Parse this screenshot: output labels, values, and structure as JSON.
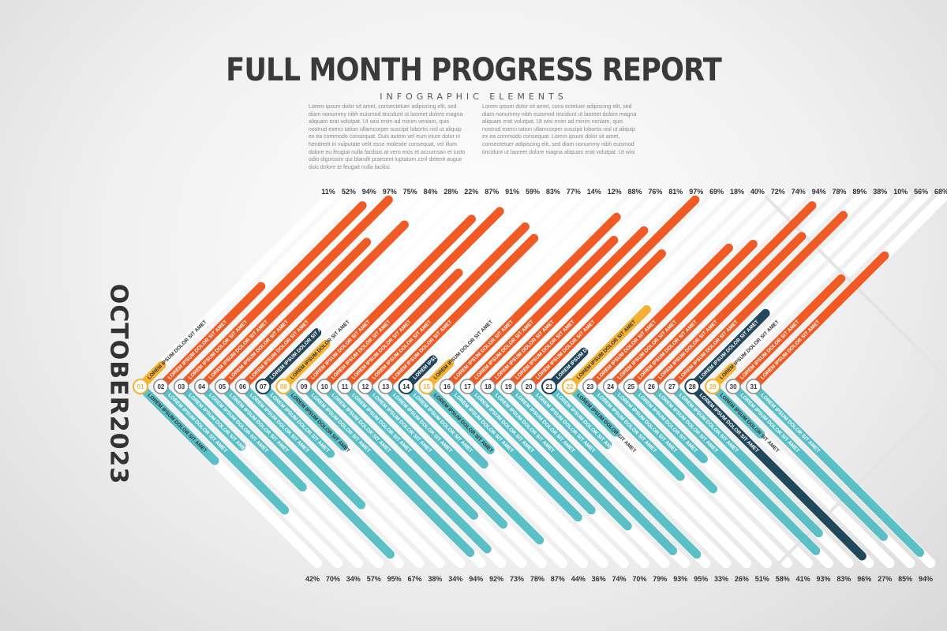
{
  "title": "FULL MONTH PROGRESS REPORT",
  "subtitle": "INFOGRAPHIC ELEMENTS",
  "paragraph_left": "Lorem ipsum dolor sit amet, consectetuer adipiscing elit, sed diam nonummy nibh euismod tincidunt ut laoreet dolore magna aliquam erat volutpat. Ut wisi enim ad minim veniam, quis nostrud exerci tation ullamcorper suscipit lobortis nisl ut aliquip ex ea commodo consequat. Duis autem vel eum iriure dolor in hendrerit in vulputate velit esse molestie consequat, vel illum dolore eu feugiat nulla facilisis at vero eros et accumsan et iusto odio dignissim qui blandit praesent luptatum zzril delenit augue duis dolore te feugait nulla facilisi.",
  "paragraph_right": "Lorem ipsum dolor sit amet, cons ectetuer adipiscing elit, sed diam nonummy nibh euismod tincidunt ut laoreet dolore magna aliquam erat volutpat. Ut wisi enim ad minim veniam, quis nostrud exerci tation ullamcorper suscipit lobortis nisl ut aliquip ex ea commodo consequat. Lorem ipsum dolor sit amet, consectetuer adipiscing elit, sed diam nonummy nibh euismod tincidunt ut laoreet dolore magna aliquam erat volutpat. Ut wisi",
  "month_label": "OCTOBER2023",
  "bar_label": "LOREM IPSUM DOLOR SIT AMET",
  "colors": {
    "upper": "#f05a24",
    "lower": "#5bbfc6",
    "highlight_yellow": "#f2b234",
    "highlight_navy": "#22465a",
    "track": "#ffffff",
    "text_dark": "#333333"
  },
  "days": [
    {
      "day": "01",
      "top_pct": "11%",
      "bottom_pct": "42%",
      "top": 0.11,
      "bottom": 0.42,
      "highlight": "yellow"
    },
    {
      "day": "02",
      "top_pct": "52%",
      "bottom_pct": "70%",
      "top": 0.52,
      "bottom": 0.7,
      "highlight": "none"
    },
    {
      "day": "03",
      "top_pct": "94%",
      "bottom_pct": "34%",
      "top": 0.94,
      "bottom": 0.34,
      "highlight": "none"
    },
    {
      "day": "04",
      "top_pct": "97%",
      "bottom_pct": "57%",
      "top": 0.97,
      "bottom": 0.57,
      "highlight": "none"
    },
    {
      "day": "05",
      "top_pct": "75%",
      "bottom_pct": "95%",
      "top": 0.75,
      "bottom": 0.95,
      "highlight": "none"
    },
    {
      "day": "06",
      "top_pct": "84%",
      "bottom_pct": "67%",
      "top": 0.84,
      "bottom": 0.67,
      "highlight": "none"
    },
    {
      "day": "07",
      "top_pct": "28%",
      "bottom_pct": "38%",
      "top": 0.28,
      "bottom": 0.38,
      "highlight": "navy"
    },
    {
      "day": "08",
      "top_pct": "22%",
      "bottom_pct": "34%",
      "top": 0.22,
      "bottom": 0.34,
      "highlight": "yellow"
    },
    {
      "day": "09",
      "top_pct": "87%",
      "bottom_pct": "94%",
      "top": 0.87,
      "bottom": 0.94,
      "highlight": "none"
    },
    {
      "day": "10",
      "top_pct": "91%",
      "bottom_pct": "92%",
      "top": 0.91,
      "bottom": 0.92,
      "highlight": "none"
    },
    {
      "day": "11",
      "top_pct": "59%",
      "bottom_pct": "73%",
      "top": 0.59,
      "bottom": 0.73,
      "highlight": "none"
    },
    {
      "day": "12",
      "top_pct": "83%",
      "bottom_pct": "78%",
      "top": 0.83,
      "bottom": 0.78,
      "highlight": "none"
    },
    {
      "day": "13",
      "top_pct": "77%",
      "bottom_pct": "87%",
      "top": 0.77,
      "bottom": 0.87,
      "highlight": "none"
    },
    {
      "day": "14",
      "top_pct": "14%",
      "bottom_pct": "44%",
      "top": 0.14,
      "bottom": 0.44,
      "highlight": "navy"
    },
    {
      "day": "15",
      "top_pct": "12%",
      "bottom_pct": "36%",
      "top": 0.12,
      "bottom": 0.36,
      "highlight": "yellow"
    },
    {
      "day": "16",
      "top_pct": "88%",
      "bottom_pct": "74%",
      "top": 0.88,
      "bottom": 0.74,
      "highlight": "none"
    },
    {
      "day": "17",
      "top_pct": "76%",
      "bottom_pct": "70%",
      "top": 0.76,
      "bottom": 0.7,
      "highlight": "none"
    },
    {
      "day": "18",
      "top_pct": "81%",
      "bottom_pct": "79%",
      "top": 0.81,
      "bottom": 0.79,
      "highlight": "none"
    },
    {
      "day": "19",
      "top_pct": "97%",
      "bottom_pct": "93%",
      "top": 0.97,
      "bottom": 0.93,
      "highlight": "none"
    },
    {
      "day": "20",
      "top_pct": "69%",
      "bottom_pct": "95%",
      "top": 0.69,
      "bottom": 0.95,
      "highlight": "none"
    },
    {
      "day": "21",
      "top_pct": "18%",
      "bottom_pct": "33%",
      "top": 0.18,
      "bottom": 0.33,
      "highlight": "navy"
    },
    {
      "day": "22",
      "top_pct": "40%",
      "bottom_pct": "26%",
      "top": 0.4,
      "bottom": 0.26,
      "highlight": "yellow"
    },
    {
      "day": "23",
      "top_pct": "72%",
      "bottom_pct": "51%",
      "top": 0.72,
      "bottom": 0.51,
      "highlight": "none"
    },
    {
      "day": "24",
      "top_pct": "74%",
      "bottom_pct": "58%",
      "top": 0.74,
      "bottom": 0.58,
      "highlight": "none"
    },
    {
      "day": "25",
      "top_pct": "94%",
      "bottom_pct": "41%",
      "top": 0.94,
      "bottom": 0.41,
      "highlight": "none"
    },
    {
      "day": "26",
      "top_pct": "78%",
      "bottom_pct": "93%",
      "top": 0.78,
      "bottom": 0.93,
      "highlight": "none"
    },
    {
      "day": "27",
      "top_pct": "89%",
      "bottom_pct": "83%",
      "top": 0.89,
      "bottom": 0.83,
      "highlight": "none"
    },
    {
      "day": "28",
      "top_pct": "38%",
      "bottom_pct": "96%",
      "top": 0.38,
      "bottom": 0.96,
      "highlight": "navy"
    },
    {
      "day": "29",
      "top_pct": "10%",
      "bottom_pct": "27%",
      "top": 0.1,
      "bottom": 0.27,
      "highlight": "yellow"
    },
    {
      "day": "30",
      "top_pct": "56%",
      "bottom_pct": "85%",
      "top": 0.56,
      "bottom": 0.85,
      "highlight": "none"
    },
    {
      "day": "31",
      "top_pct": "68%",
      "bottom_pct": "94%",
      "top": 0.68,
      "bottom": 0.94,
      "highlight": "none"
    }
  ]
}
